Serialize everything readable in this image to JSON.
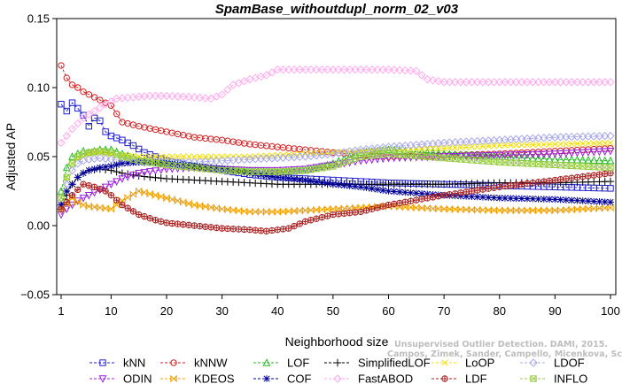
{
  "chart_data": {
    "type": "line",
    "title": "SpamBase_withoutdupl_norm_02_v03",
    "xlabel": "Neighborhood size",
    "ylabel": "Adjusted AP",
    "xlim": [
      1,
      100
    ],
    "ylim": [
      -0.05,
      0.15
    ],
    "x_ticks": [
      "1",
      "10",
      "20",
      "30",
      "40",
      "50",
      "60",
      "70",
      "80",
      "90",
      "100"
    ],
    "y_ticks": [
      "−0.05",
      "0.00",
      "0.05",
      "0.10",
      "0.15"
    ],
    "grid": false,
    "legend_position": "bottom",
    "watermark": [
      "Unsupervised Outlier Detection. DAMI, 2015.",
      "Campos, Zimek, Sander, Campello, Micenkova, Schubert, Assent, Houle"
    ],
    "series": [
      {
        "name": "kNN",
        "color": "#1f1fcc",
        "marker": "square",
        "x": [
          1,
          2,
          3,
          4,
          5,
          6,
          7,
          8,
          9,
          10,
          12,
          14,
          16,
          18,
          20,
          25,
          30,
          35,
          40,
          45,
          50,
          60,
          70,
          80,
          90,
          100
        ],
        "values": [
          0.088,
          0.083,
          0.089,
          0.085,
          0.08,
          0.072,
          0.078,
          0.076,
          0.068,
          0.065,
          0.062,
          0.058,
          0.053,
          0.05,
          0.047,
          0.043,
          0.04,
          0.037,
          0.035,
          0.034,
          0.033,
          0.031,
          0.03,
          0.029,
          0.028,
          0.027
        ]
      },
      {
        "name": "kNNW",
        "color": "#d42020",
        "marker": "circle",
        "x": [
          1,
          2,
          3,
          4,
          5,
          6,
          8,
          10,
          12,
          15,
          20,
          25,
          30,
          35,
          40,
          45,
          50,
          55,
          60,
          70,
          80,
          90,
          100
        ],
        "values": [
          0.116,
          0.107,
          0.102,
          0.1,
          0.097,
          0.095,
          0.091,
          0.087,
          0.075,
          0.072,
          0.068,
          0.064,
          0.062,
          0.059,
          0.057,
          0.055,
          0.053,
          0.051,
          0.05,
          0.051,
          0.052,
          0.054,
          0.056
        ]
      },
      {
        "name": "LOF",
        "color": "#22bb22",
        "marker": "triangle",
        "x": [
          1,
          2,
          3,
          4,
          5,
          6,
          8,
          10,
          12,
          15,
          20,
          25,
          30,
          35,
          40,
          45,
          50,
          55,
          60,
          70,
          80,
          90,
          100
        ],
        "values": [
          0.025,
          0.042,
          0.05,
          0.052,
          0.054,
          0.053,
          0.055,
          0.055,
          0.052,
          0.048,
          0.045,
          0.043,
          0.041,
          0.04,
          0.039,
          0.04,
          0.045,
          0.053,
          0.055,
          0.052,
          0.05,
          0.048,
          0.047
        ]
      },
      {
        "name": "SimplifiedLOF",
        "color": "#000000",
        "marker": "plus",
        "x": [
          1,
          2,
          3,
          4,
          5,
          6,
          8,
          10,
          12,
          15,
          20,
          25,
          30,
          35,
          40,
          45,
          50,
          55,
          60,
          70,
          80,
          90,
          100
        ],
        "values": [
          0.012,
          0.022,
          0.03,
          0.035,
          0.038,
          0.04,
          0.041,
          0.04,
          0.038,
          0.036,
          0.034,
          0.033,
          0.032,
          0.031,
          0.03,
          0.03,
          0.03,
          0.03,
          0.03,
          0.03,
          0.031,
          0.031,
          0.032
        ]
      },
      {
        "name": "LoOP",
        "color": "#f0e000",
        "marker": "x",
        "x": [
          1,
          2,
          3,
          4,
          5,
          6,
          8,
          10,
          12,
          15,
          20,
          25,
          30,
          35,
          40,
          45,
          50,
          55,
          60,
          70,
          80,
          90,
          100
        ],
        "values": [
          0.02,
          0.035,
          0.045,
          0.048,
          0.05,
          0.052,
          0.053,
          0.052,
          0.051,
          0.05,
          0.05,
          0.05,
          0.05,
          0.05,
          0.051,
          0.052,
          0.053,
          0.054,
          0.055,
          0.056,
          0.058,
          0.059,
          0.06
        ]
      },
      {
        "name": "LDOF",
        "color": "#a8a8e8",
        "marker": "diamond",
        "x": [
          1,
          2,
          3,
          4,
          5,
          6,
          8,
          10,
          12,
          15,
          20,
          25,
          30,
          35,
          40,
          45,
          50,
          55,
          60,
          70,
          80,
          90,
          100
        ],
        "values": [
          0.015,
          0.03,
          0.04,
          0.045,
          0.047,
          0.048,
          0.049,
          0.048,
          0.047,
          0.046,
          0.046,
          0.046,
          0.047,
          0.048,
          0.049,
          0.05,
          0.052,
          0.055,
          0.057,
          0.06,
          0.062,
          0.064,
          0.065
        ]
      },
      {
        "name": "ODIN",
        "color": "#9a22dd",
        "marker": "triangle-down",
        "x": [
          1,
          2,
          3,
          4,
          5,
          6,
          8,
          10,
          12,
          15,
          20,
          25,
          30,
          35,
          40,
          45,
          50,
          55,
          60,
          70,
          80,
          90,
          100
        ],
        "values": [
          0.008,
          0.012,
          0.015,
          0.018,
          0.02,
          0.022,
          0.026,
          0.03,
          0.034,
          0.038,
          0.041,
          0.042,
          0.041,
          0.04,
          0.04,
          0.041,
          0.044,
          0.047,
          0.049,
          0.05,
          0.051,
          0.052,
          0.054
        ]
      },
      {
        "name": "KDEOS",
        "color": "#f0a000",
        "marker": "bowtie",
        "x": [
          1,
          2,
          3,
          4,
          5,
          6,
          8,
          10,
          12,
          15,
          20,
          25,
          30,
          35,
          40,
          45,
          50,
          55,
          60,
          70,
          80,
          90,
          100
        ],
        "values": [
          0.012,
          0.016,
          0.02,
          0.017,
          0.015,
          0.014,
          0.013,
          0.012,
          0.018,
          0.025,
          0.02,
          0.015,
          0.012,
          0.01,
          0.01,
          0.011,
          0.012,
          0.013,
          0.014,
          0.012,
          0.011,
          0.011,
          0.013
        ]
      },
      {
        "name": "COF",
        "color": "#000099",
        "marker": "asterisk",
        "x": [
          1,
          2,
          3,
          4,
          5,
          6,
          8,
          10,
          12,
          15,
          20,
          25,
          30,
          35,
          40,
          45,
          50,
          55,
          60,
          70,
          80,
          90,
          100
        ],
        "values": [
          0.015,
          0.025,
          0.03,
          0.035,
          0.038,
          0.04,
          0.042,
          0.043,
          0.045,
          0.046,
          0.045,
          0.043,
          0.041,
          0.038,
          0.035,
          0.033,
          0.03,
          0.028,
          0.025,
          0.022,
          0.02,
          0.019,
          0.017
        ]
      },
      {
        "name": "FastABOD",
        "color": "#ffaaee",
        "marker": "diamond",
        "x": [
          1,
          3,
          5,
          7,
          9,
          11,
          14,
          17,
          20,
          25,
          28,
          30,
          32,
          35,
          38,
          40,
          45,
          50,
          55,
          60,
          65,
          67,
          70,
          80,
          90,
          100
        ],
        "values": [
          0.06,
          0.07,
          0.078,
          0.083,
          0.088,
          0.092,
          0.093,
          0.094,
          0.094,
          0.093,
          0.092,
          0.095,
          0.102,
          0.106,
          0.109,
          0.113,
          0.113,
          0.113,
          0.113,
          0.113,
          0.112,
          0.106,
          0.104,
          0.104,
          0.104,
          0.104
        ]
      },
      {
        "name": "LDF",
        "color": "#aa2222",
        "marker": "circle-plus",
        "x": [
          1,
          3,
          5,
          7,
          9,
          10,
          12,
          15,
          18,
          20,
          25,
          30,
          35,
          38,
          42,
          45,
          48,
          50,
          55,
          60,
          70,
          80,
          90,
          100
        ],
        "values": [
          0.012,
          0.022,
          0.03,
          0.028,
          0.025,
          0.022,
          0.015,
          0.008,
          0.004,
          0.002,
          0.0,
          -0.002,
          -0.003,
          -0.004,
          -0.002,
          0.003,
          0.006,
          0.008,
          0.01,
          0.015,
          0.022,
          0.028,
          0.033,
          0.038
        ]
      },
      {
        "name": "INFLO",
        "color": "#99cc44",
        "marker": "star",
        "x": [
          1,
          2,
          3,
          4,
          5,
          6,
          8,
          10,
          12,
          15,
          20,
          25,
          30,
          35,
          40,
          45,
          50,
          55,
          60,
          70,
          80,
          90,
          100
        ],
        "values": [
          0.02,
          0.035,
          0.045,
          0.05,
          0.052,
          0.053,
          0.054,
          0.053,
          0.05,
          0.047,
          0.044,
          0.042,
          0.04,
          0.039,
          0.039,
          0.04,
          0.043,
          0.05,
          0.052,
          0.049,
          0.046,
          0.044,
          0.042
        ]
      }
    ]
  }
}
